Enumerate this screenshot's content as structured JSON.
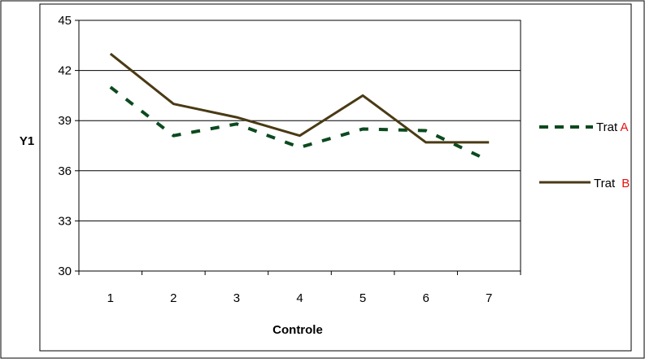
{
  "chart_data": {
    "type": "line",
    "title": "",
    "xlabel": "Controle",
    "ylabel": "Y1",
    "categories": [
      "1",
      "2",
      "3",
      "4",
      "5",
      "6",
      "7"
    ],
    "ylim": [
      30,
      45
    ],
    "yticks": [
      30,
      33,
      36,
      39,
      42,
      45
    ],
    "grid": true,
    "legend_position": "right",
    "series": [
      {
        "name_prefix": "Trat ",
        "name_suffix": "A",
        "values": [
          41.0,
          38.1,
          38.8,
          37.4,
          38.5,
          38.4,
          36.6
        ],
        "color": "#0b4a1e",
        "line_style": "dashed"
      },
      {
        "name_prefix": "Trat ",
        "name_suffix": "B",
        "values": [
          43.0,
          40.0,
          39.2,
          38.1,
          40.5,
          37.7,
          37.7
        ],
        "color": "#4a3a14",
        "line_style": "solid"
      }
    ],
    "legend_suffix_color": "#e81010",
    "frame_color": "#000000",
    "grid_color": "#000000"
  }
}
